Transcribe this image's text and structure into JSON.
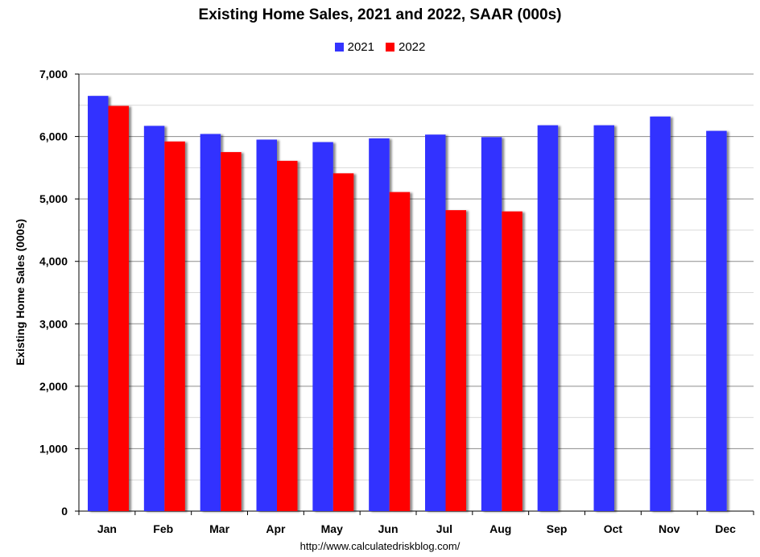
{
  "chart_data": {
    "type": "bar",
    "title": "Existing Home Sales,  2021 and 2022, SAAR (000s)",
    "xlabel": "",
    "ylabel": "Existing Home Sales (000s)",
    "categories": [
      "Jan",
      "Feb",
      "Mar",
      "Apr",
      "May",
      "Jun",
      "Jul",
      "Aug",
      "Sep",
      "Oct",
      "Nov",
      "Dec"
    ],
    "series": [
      {
        "name": "2021",
        "color": "#3333ff",
        "values": [
          6650,
          6170,
          6040,
          5950,
          5910,
          5970,
          6030,
          5990,
          6180,
          6180,
          6320,
          6090
        ]
      },
      {
        "name": "2022",
        "color": "#ff0000",
        "values": [
          6490,
          5920,
          5750,
          5610,
          5410,
          5110,
          4820,
          4800,
          null,
          null,
          null,
          null
        ]
      }
    ],
    "ylim": [
      0,
      7000
    ],
    "yticks": [
      0,
      1000,
      2000,
      3000,
      4000,
      5000,
      6000,
      7000
    ],
    "ytick_labels": [
      "0",
      "1,000",
      "2,000",
      "3,000",
      "4,000",
      "5,000",
      "6,000",
      "7,000"
    ],
    "grid": true,
    "legend_position": "top-center"
  },
  "source_text": "http://www.calculatedriskblog.com/"
}
